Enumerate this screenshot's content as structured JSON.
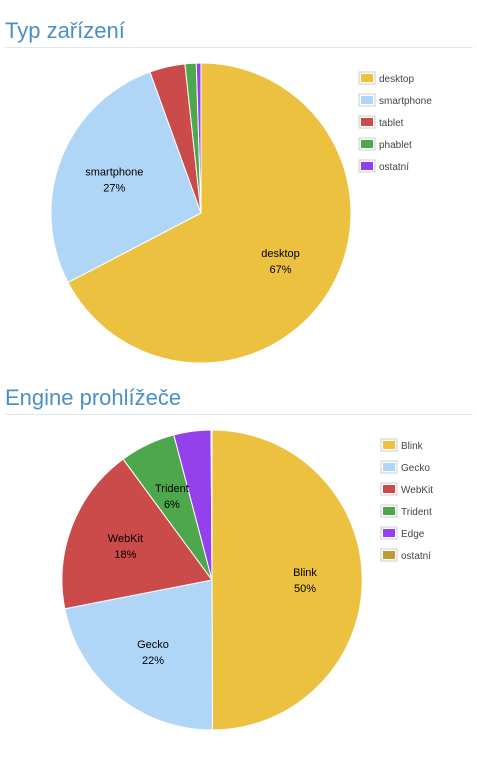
{
  "chart_data": [
    {
      "type": "pie",
      "title": "Typ zařízení",
      "slices": [
        {
          "label": "desktop",
          "value": 67,
          "display": "67%",
          "color": "#ecc13f"
        },
        {
          "label": "smartphone",
          "value": 27,
          "display": "27%",
          "color": "#b0d6f7"
        },
        {
          "label": "tablet",
          "value": 3.8,
          "display": "",
          "color": "#cb4b4b"
        },
        {
          "label": "phablet",
          "value": 1.2,
          "display": "",
          "color": "#4da74d"
        },
        {
          "label": "ostatní",
          "value": 0.5,
          "display": "",
          "color": "#9440ed"
        }
      ],
      "legend": [
        "desktop",
        "smartphone",
        "tablet",
        "phablet",
        "ostatní"
      ],
      "legend_placement": "top-right"
    },
    {
      "type": "pie",
      "title": "Engine prohlížeče",
      "slices": [
        {
          "label": "Blink",
          "value": 50,
          "display": "50%",
          "color": "#ecc13f"
        },
        {
          "label": "Gecko",
          "value": 22,
          "display": "22%",
          "color": "#b0d6f7"
        },
        {
          "label": "WebKit",
          "value": 18,
          "display": "18%",
          "color": "#cb4b4b"
        },
        {
          "label": "Trident",
          "value": 6,
          "display": "6%",
          "color": "#4da74d"
        },
        {
          "label": "Edge",
          "value": 4,
          "display": "",
          "color": "#9440ed"
        },
        {
          "label": "ostatní",
          "value": 0.1,
          "display": "",
          "color": "#bd9b33"
        }
      ],
      "legend": [
        "Blink",
        "Gecko",
        "WebKit",
        "Trident",
        "Edge",
        "ostatní"
      ],
      "legend_placement": "top-right"
    }
  ]
}
